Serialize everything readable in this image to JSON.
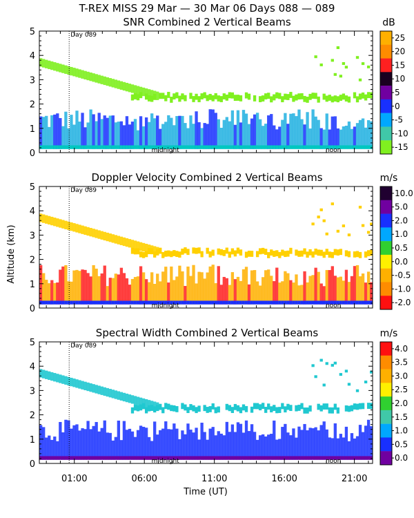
{
  "figure": {
    "title": "T-REX MISS   29 Mar — 30 Mar 06 Days 088 — 089",
    "shared_xlabel": "Time (UT)",
    "shared_ylabel": "Altitude (km)",
    "day_marker_label": "Day 089",
    "midnight_label": "midnight",
    "noon_label": "noon"
  },
  "chart_data": [
    {
      "type": "heatmap",
      "title": "SNR Combined 2 Vertical Beams",
      "ylabel": "Altitude (km)",
      "ylim": [
        0,
        5
      ],
      "yticks": [
        "0",
        "1",
        "2",
        "3",
        "4",
        "5"
      ],
      "xlim_hours": [
        22.5,
        46.3
      ],
      "colorbar_unit": "dB",
      "colorbar_labels": [
        "25",
        "20",
        "15",
        "10",
        "5",
        "0",
        "-5",
        "-10",
        "-15"
      ],
      "colorbar_colors": [
        "#ffb000",
        "#ff8c00",
        "#ff2020",
        "#1a0020",
        "#7000a0",
        "#1830ff",
        "#00a8ff",
        "#40c8a8",
        "#80f020"
      ],
      "colors": {
        "high": "#80f020",
        "mid": "#20b0e0",
        "low": "#1830ff",
        "base": "#00c8c0"
      }
    },
    {
      "type": "heatmap",
      "title": "Doppler Velocity Combined 2 Vertical Beams",
      "ylabel": "Altitude (km)",
      "ylim": [
        0,
        5
      ],
      "yticks": [
        "0",
        "1",
        "2",
        "3",
        "4",
        "5"
      ],
      "xlim_hours": [
        22.5,
        46.3
      ],
      "colorbar_unit": "m/s",
      "colorbar_labels": [
        "10.0",
        "5.0",
        "2.0",
        "1.0",
        "0.5",
        "0.0",
        "-0.5",
        "-1.0",
        "-2.0"
      ],
      "colorbar_colors": [
        "#200030",
        "#7000a0",
        "#1830ff",
        "#00a8ff",
        "#30d030",
        "#fff000",
        "#ffb000",
        "#ff8c00",
        "#ff1010"
      ],
      "colors": {
        "high": "#ffd000",
        "mid": "#ffb000",
        "low": "#ff2020",
        "base": "#1830ff"
      }
    },
    {
      "type": "heatmap",
      "title": "Spectral Width Combined 2 Vertical Beams",
      "ylabel": "Altitude (km)",
      "ylim": [
        0,
        5
      ],
      "yticks": [
        "0",
        "1",
        "2",
        "3",
        "4",
        "5"
      ],
      "xlim_hours": [
        22.5,
        46.3
      ],
      "colorbar_unit": "m/s",
      "colorbar_labels": [
        "4.0",
        "3.5",
        "3.0",
        "2.5",
        "2.0",
        "1.5",
        "1.0",
        "0.5",
        "0.0"
      ],
      "colorbar_colors": [
        "#ff1010",
        "#ff8c00",
        "#ffb000",
        "#fff000",
        "#30d030",
        "#40c8a8",
        "#00a8ff",
        "#1830ff",
        "#7000a0"
      ],
      "colors": {
        "high": "#20c8d0",
        "mid": "#1830ff",
        "low": "#1830ff",
        "base": "#7000a0"
      }
    }
  ],
  "time_axis": {
    "tick_labels": [
      "01:00",
      "06:00",
      "11:00",
      "16:00",
      "21:00"
    ],
    "tick_hours": [
      25,
      30,
      35,
      40,
      45
    ],
    "day_marker_hour": 24.63,
    "midnight_hour": 31.5,
    "noon_hour": 43.5
  }
}
